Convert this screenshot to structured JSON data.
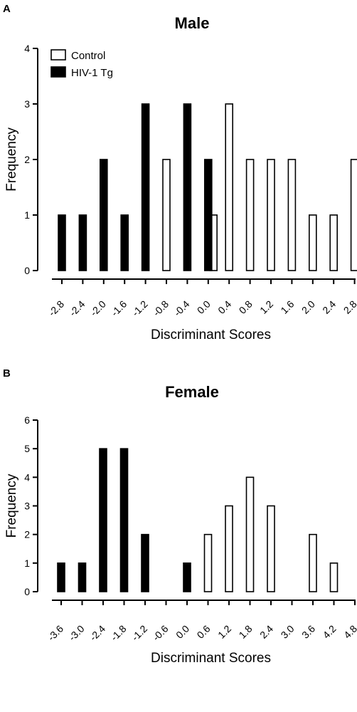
{
  "chart_data": [
    {
      "panel": "A",
      "type": "bar",
      "title": "Male",
      "xlabel": "Discriminant Scores",
      "ylabel": "Frequency",
      "ylim": [
        0,
        4
      ],
      "yticks": [
        "0",
        "1",
        "2",
        "3",
        "4"
      ],
      "xticks": [
        "-2.8",
        "-2.4",
        "-2.0",
        "-1.6",
        "-1.2",
        "-0.8",
        "-0.4",
        "0.0",
        "0.4",
        "0.8",
        "1.2",
        "1.6",
        "2.0",
        "2.4",
        "2.8"
      ],
      "legend": {
        "position": "top-left",
        "entries": [
          "Control",
          "HIV-1 Tg"
        ]
      },
      "series": [
        {
          "name": "Control",
          "fill": "#ffffff",
          "x": [
            -0.8,
            0.1,
            0.4,
            0.8,
            1.2,
            1.6,
            2.0,
            2.4,
            2.8
          ],
          "values": [
            2,
            1,
            3,
            2,
            2,
            2,
            1,
            1,
            2
          ]
        },
        {
          "name": "HIV-1 Tg",
          "fill": "#000000",
          "x": [
            -2.8,
            -2.4,
            -2.0,
            -1.6,
            -1.2,
            -0.4,
            0.0
          ],
          "values": [
            1,
            1,
            2,
            1,
            3,
            3,
            2
          ]
        }
      ]
    },
    {
      "panel": "B",
      "type": "bar",
      "title": "Female",
      "xlabel": "Discriminant Scores",
      "ylabel": "Frequency",
      "ylim": [
        0,
        6
      ],
      "yticks": [
        "0",
        "1",
        "2",
        "3",
        "4",
        "5",
        "6"
      ],
      "xticks": [
        "-3.6",
        "-3.0",
        "-2.4",
        "-1.8",
        "-1.2",
        "-0.6",
        "0.0",
        "0.6",
        "1.2",
        "1.8",
        "2.4",
        "3.0",
        "3.6",
        "4.2",
        "4.8"
      ],
      "series": [
        {
          "name": "Control",
          "fill": "#ffffff",
          "x": [
            0.6,
            1.2,
            1.8,
            2.4,
            3.6,
            4.2
          ],
          "values": [
            2,
            3,
            4,
            3,
            2,
            1
          ]
        },
        {
          "name": "HIV-1 Tg",
          "fill": "#000000",
          "x": [
            -3.6,
            -3.0,
            -2.4,
            -1.8,
            -1.2,
            0.0
          ],
          "values": [
            1,
            1,
            5,
            5,
            2,
            1
          ]
        }
      ]
    }
  ]
}
